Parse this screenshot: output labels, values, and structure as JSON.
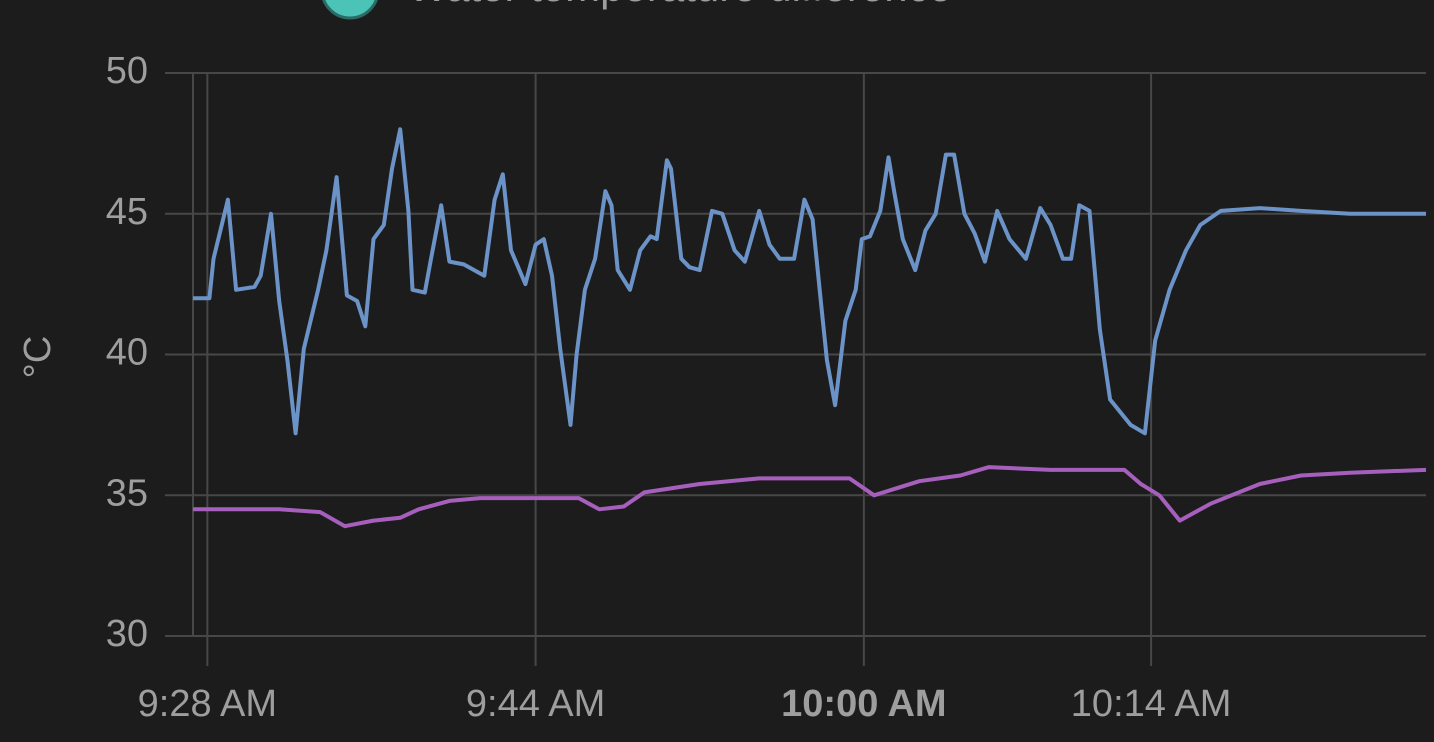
{
  "chart_data": {
    "type": "line",
    "legend": [
      {
        "name": "Water temperature difference",
        "color": "#4cc3b7"
      }
    ],
    "y_label": "°C",
    "grid": true,
    "xlim": [
      567.3,
      627.4
    ],
    "xticks": [
      {
        "value": 568,
        "label": "9:28 AM"
      },
      {
        "value": 584,
        "label": "9:44 AM"
      },
      {
        "value": 600,
        "label": "10:00 AM",
        "bold": true
      },
      {
        "value": 614,
        "label": "10:14 AM"
      }
    ],
    "ylim": [
      30,
      50
    ],
    "yticks": [
      30,
      35,
      40,
      45,
      50
    ],
    "series": [
      {
        "color": "#6b93c8",
        "x": [
          567.3,
          568.1,
          568.3,
          569.0,
          569.4,
          570.3,
          570.6,
          571.1,
          571.5,
          571.9,
          572.3,
          572.7,
          573.4,
          573.8,
          574.3,
          574.8,
          575.3,
          575.7,
          576.1,
          576.6,
          577.0,
          577.4,
          577.8,
          578.0,
          578.6,
          578.9,
          579.4,
          579.8,
          580.5,
          581.5,
          582.0,
          582.4,
          582.8,
          583.5,
          584.0,
          584.4,
          584.8,
          585.2,
          585.7,
          586.0,
          586.4,
          586.9,
          587.4,
          587.7,
          588.0,
          588.6,
          589.1,
          589.6,
          589.9,
          590.4,
          590.6,
          591.1,
          591.5,
          592.0,
          592.6,
          593.1,
          593.7,
          594.2,
          594.9,
          595.4,
          595.9,
          596.6,
          597.1,
          597.5,
          597.9,
          598.2,
          598.6,
          599.1,
          599.6,
          599.9,
          600.3,
          600.8,
          601.2,
          601.5,
          601.9,
          602.5,
          603.0,
          603.5,
          604.0,
          604.4,
          604.9,
          605.4,
          605.9,
          606.5,
          607.1,
          607.9,
          608.6,
          609.1,
          609.7,
          610.1,
          610.5,
          611.0,
          611.5,
          612.0,
          613.0,
          613.7,
          614.2,
          614.9,
          615.7,
          616.4,
          617.4,
          619.3,
          621.3,
          623.7,
          627.4
        ],
        "values": [
          42.0,
          42.0,
          43.4,
          45.5,
          42.3,
          42.4,
          42.8,
          45.0,
          41.9,
          39.8,
          37.2,
          40.2,
          42.3,
          43.7,
          46.3,
          42.1,
          41.9,
          41.0,
          44.1,
          44.6,
          46.6,
          48.0,
          45.1,
          42.3,
          42.2,
          43.4,
          45.3,
          43.3,
          43.2,
          42.8,
          45.5,
          46.4,
          43.7,
          42.5,
          43.9,
          44.1,
          42.8,
          40.2,
          37.5,
          40.0,
          42.3,
          43.4,
          45.8,
          45.3,
          43.0,
          42.3,
          43.7,
          44.2,
          44.1,
          46.9,
          46.6,
          43.4,
          43.1,
          43.0,
          45.1,
          45.0,
          43.7,
          43.3,
          45.1,
          43.9,
          43.4,
          43.4,
          45.5,
          44.8,
          41.9,
          39.8,
          38.2,
          41.2,
          42.3,
          44.1,
          44.2,
          45.1,
          47.0,
          45.7,
          44.1,
          43.0,
          44.4,
          45.0,
          47.1,
          47.1,
          45.0,
          44.3,
          43.3,
          45.1,
          44.1,
          43.4,
          45.2,
          44.6,
          43.4,
          43.4,
          45.3,
          45.1,
          40.9,
          38.4,
          37.5,
          37.2,
          40.5,
          42.3,
          43.7,
          44.6,
          45.1,
          45.2,
          45.1,
          45.0,
          45.0
        ]
      },
      {
        "color": "#a65fbc",
        "x": [
          567.3,
          571.5,
          573.5,
          574.7,
          576.1,
          577.4,
          578.3,
          579.8,
          581.3,
          583.2,
          586.1,
          587.1,
          588.3,
          589.3,
          592.0,
          594.9,
          597.9,
          599.3,
          600.5,
          602.7,
          604.7,
          606.1,
          609.1,
          612.7,
          613.5,
          614.4,
          615.4,
          616.9,
          619.3,
          621.3,
          623.7,
          627.4
        ],
        "values": [
          34.5,
          34.5,
          34.4,
          33.9,
          34.1,
          34.2,
          34.5,
          34.8,
          34.9,
          34.9,
          34.9,
          34.5,
          34.6,
          35.1,
          35.4,
          35.6,
          35.6,
          35.6,
          35.0,
          35.5,
          35.7,
          36.0,
          35.9,
          35.9,
          35.4,
          35.0,
          34.1,
          34.7,
          35.4,
          35.7,
          35.8,
          35.9
        ]
      }
    ]
  }
}
